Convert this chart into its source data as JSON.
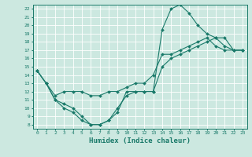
{
  "xlabel": "Humidex (Indice chaleur)",
  "xlim": [
    -0.5,
    23.5
  ],
  "ylim": [
    7.5,
    22.5
  ],
  "xticks": [
    0,
    1,
    2,
    3,
    4,
    5,
    6,
    7,
    8,
    9,
    10,
    11,
    12,
    13,
    14,
    15,
    16,
    17,
    18,
    19,
    20,
    21,
    22,
    23
  ],
  "yticks": [
    8,
    9,
    10,
    11,
    12,
    13,
    14,
    15,
    16,
    17,
    18,
    19,
    20,
    21,
    22
  ],
  "bg_color": "#cce8e0",
  "line_color": "#1a7a6a",
  "grid_color": "#ffffff",
  "curve1_x": [
    0,
    1,
    2,
    3,
    4,
    5,
    6,
    7,
    8,
    9,
    10,
    11,
    12,
    13,
    14,
    15,
    16,
    17,
    18,
    19,
    20,
    21,
    22,
    23
  ],
  "curve1_y": [
    14.5,
    13,
    11,
    10,
    9.5,
    8.5,
    8,
    8,
    8.5,
    10,
    11.5,
    12,
    12,
    12,
    19.5,
    22,
    22.5,
    21.5,
    20,
    19,
    18.5,
    17.5,
    17,
    17
  ],
  "curve2_x": [
    0,
    1,
    2,
    3,
    4,
    5,
    6,
    7,
    8,
    9,
    10,
    11,
    12,
    13,
    14,
    15,
    16,
    17,
    18,
    19,
    20,
    21,
    22,
    23
  ],
  "curve2_y": [
    14.5,
    13,
    11,
    10.5,
    10,
    9,
    8,
    8,
    8.5,
    9.5,
    12,
    12,
    12,
    12,
    15,
    16,
    16.5,
    17,
    17.5,
    18,
    18.5,
    18.5,
    17,
    17
  ],
  "curve3_x": [
    0,
    1,
    2,
    3,
    4,
    5,
    6,
    7,
    8,
    9,
    10,
    11,
    12,
    13,
    14,
    15,
    16,
    17,
    18,
    19,
    20,
    21,
    22,
    23
  ],
  "curve3_y": [
    14.5,
    13,
    11.5,
    12,
    12,
    12,
    11.5,
    11.5,
    12,
    12,
    12.5,
    13,
    13,
    14,
    16.5,
    16.5,
    17,
    17.5,
    18,
    18.5,
    17.5,
    17,
    17,
    17
  ]
}
